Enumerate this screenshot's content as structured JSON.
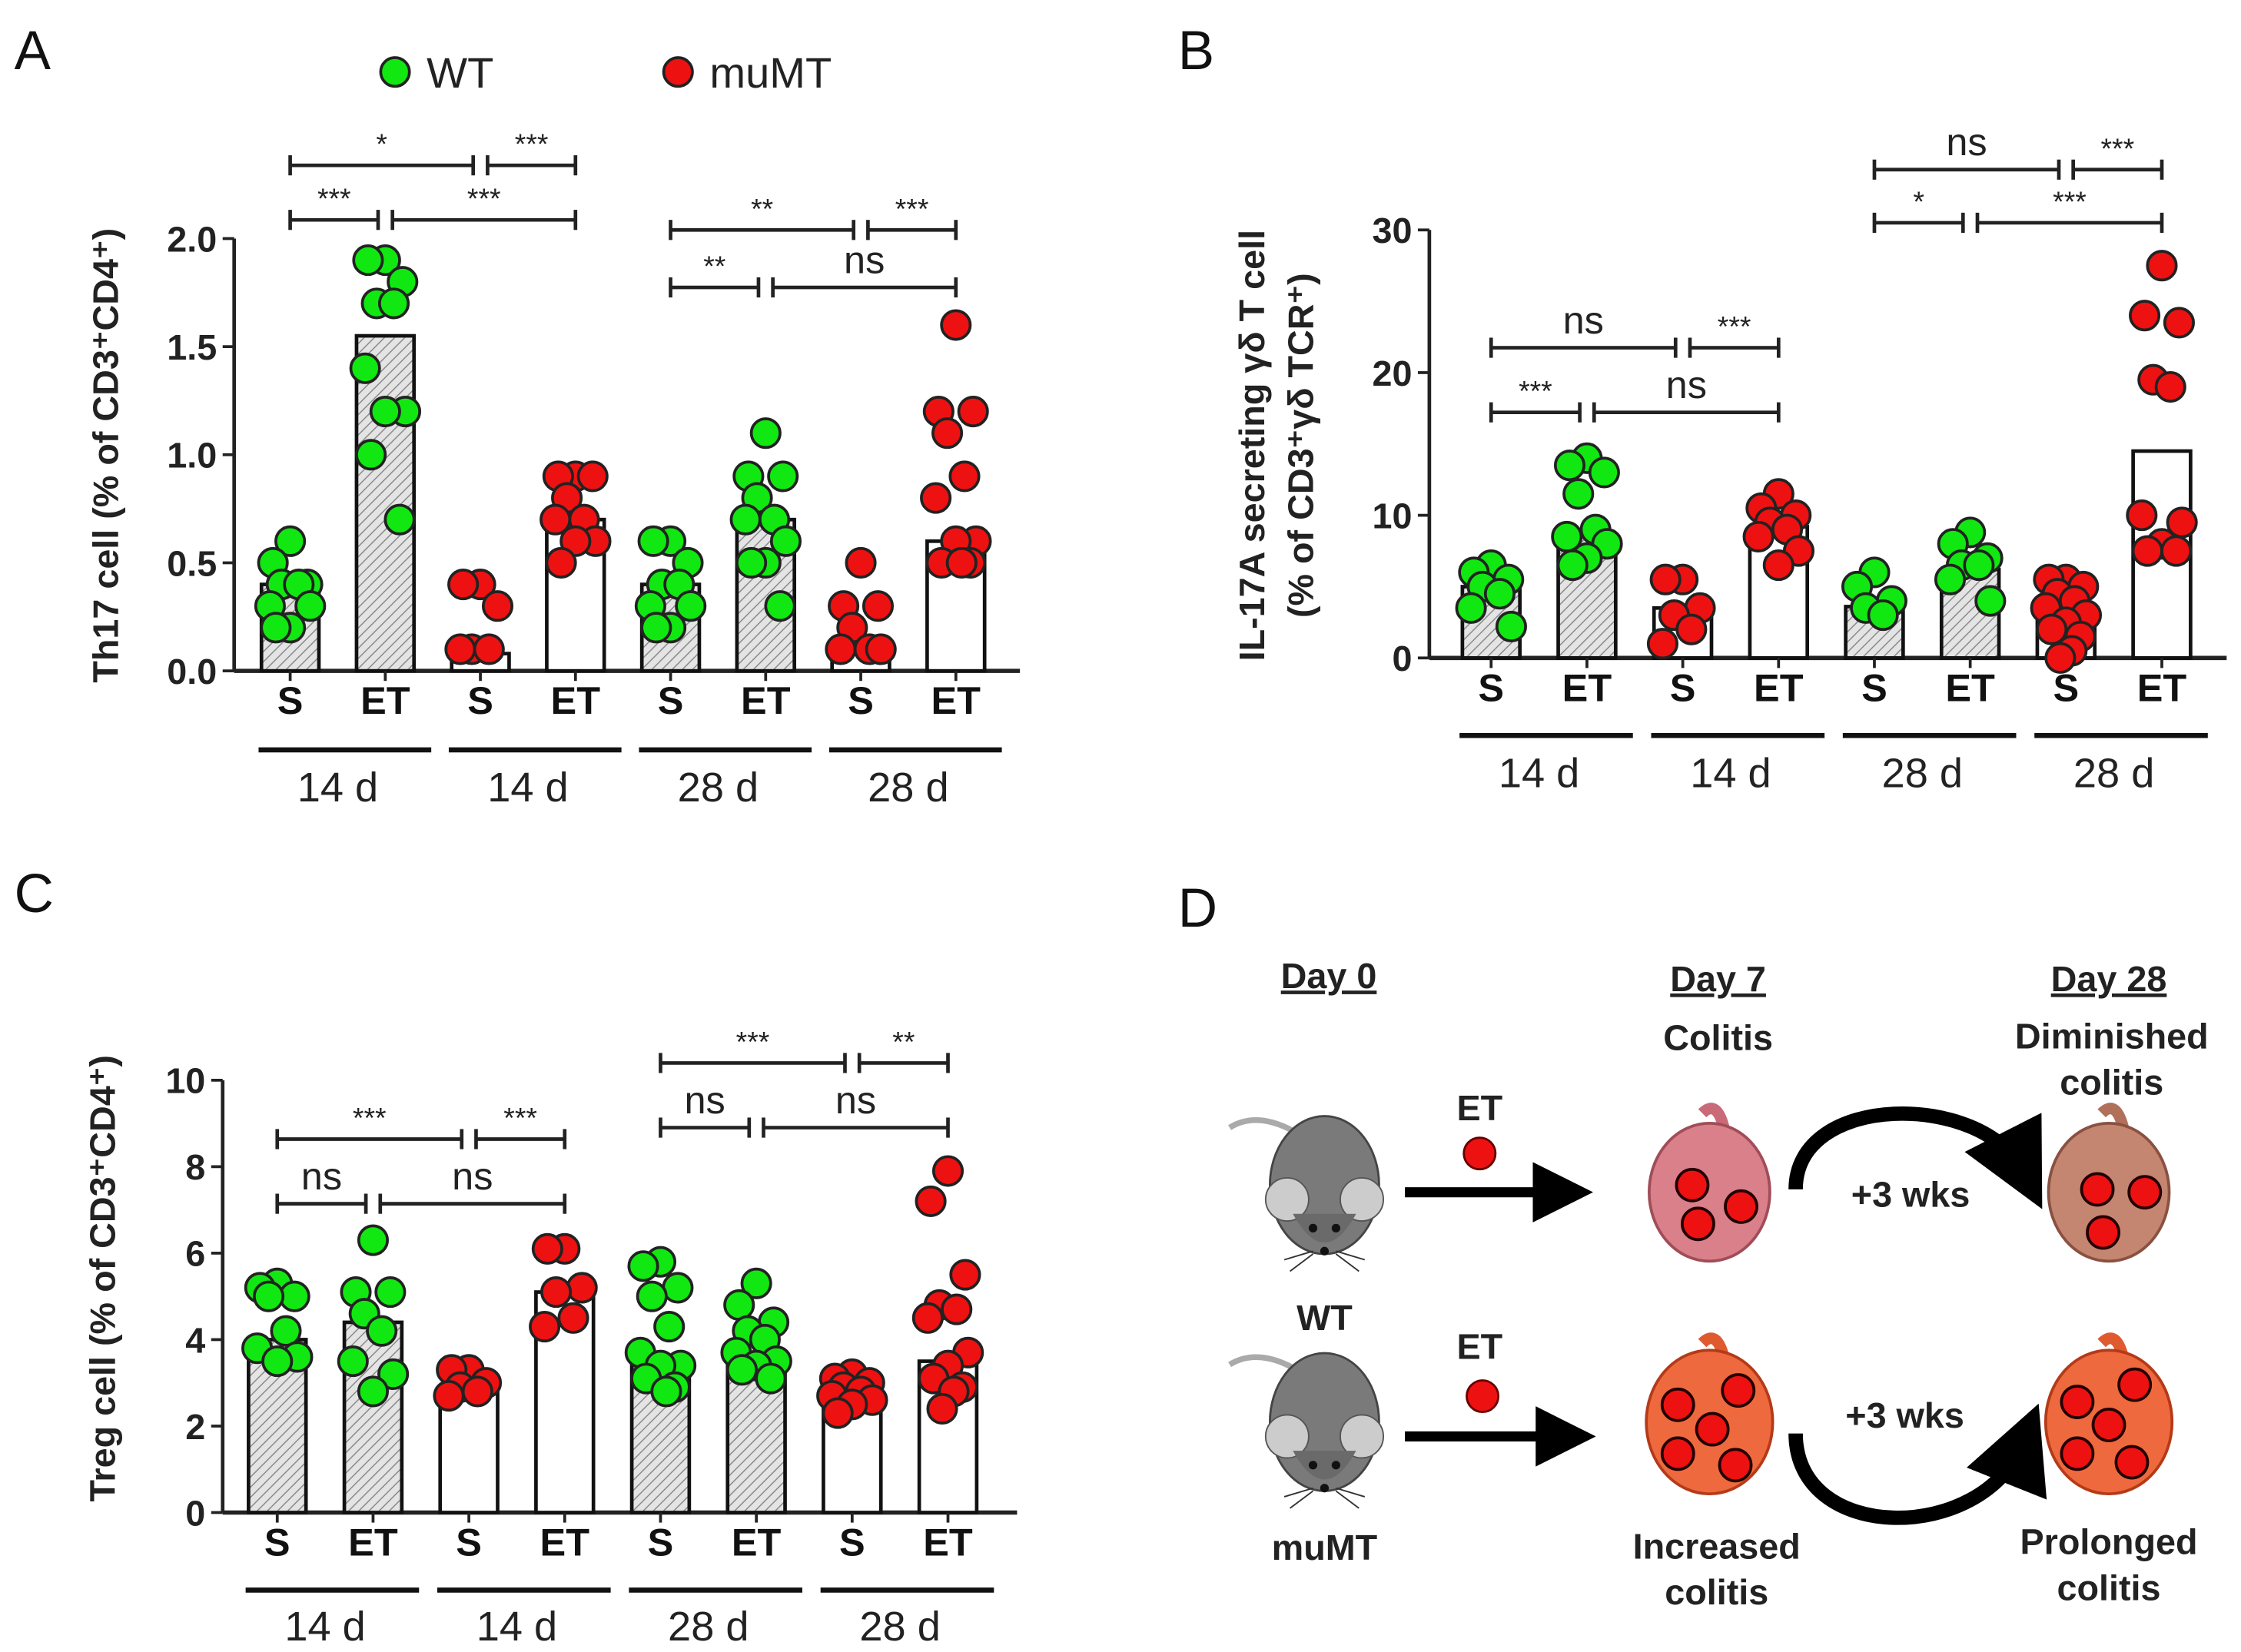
{
  "legend": {
    "wt": "WT",
    "mumt": "muMT"
  },
  "colors": {
    "wt": "#11e811",
    "mumt": "#ee1111",
    "hatch": "#999999",
    "outline": "#222222"
  },
  "chart_data": [
    {
      "panel": "A",
      "type": "bar+scatter",
      "ylabel": "Th17 cell (% of CD3⁺CD4⁺)",
      "ylim": [
        0,
        2.0
      ],
      "yticks": [
        "0.0",
        "0.5",
        "1.0",
        "1.5",
        "2.0"
      ],
      "ytick_values": [
        0,
        0.5,
        1.0,
        1.5,
        2.0
      ],
      "categories": [
        "S",
        "ET",
        "S",
        "ET",
        "S",
        "ET",
        "S",
        "ET"
      ],
      "groups": [
        "14 d",
        "14 d",
        "28 d",
        "28 d"
      ],
      "genotype": [
        "WT",
        "WT",
        "muMT",
        "muMT",
        "WT",
        "WT",
        "muMT",
        "muMT"
      ],
      "means": [
        0.4,
        1.55,
        0.08,
        0.7,
        0.4,
        0.7,
        0.08,
        0.6
      ],
      "points": [
        [
          0.6,
          0.5,
          0.4,
          0.4,
          0.4,
          0.3,
          0.3,
          0.2,
          0.2
        ],
        [
          1.9,
          1.9,
          1.8,
          1.7,
          1.7,
          1.4,
          1.2,
          1.2,
          1.0,
          0.7
        ],
        [
          0.4,
          0.4,
          0.3,
          0.1,
          0.1,
          0.1
        ],
        [
          0.9,
          0.9,
          0.9,
          0.8,
          0.7,
          0.7,
          0.6,
          0.6,
          0.5
        ],
        [
          0.6,
          0.6,
          0.5,
          0.4,
          0.4,
          0.3,
          0.3,
          0.2,
          0.2
        ],
        [
          1.1,
          0.9,
          0.9,
          0.8,
          0.7,
          0.7,
          0.6,
          0.5,
          0.5,
          0.3
        ],
        [
          0.5,
          0.3,
          0.3,
          0.2,
          0.1,
          0.1,
          0.1
        ],
        [
          1.6,
          1.2,
          1.2,
          1.1,
          0.9,
          0.8,
          0.6,
          0.6,
          0.5,
          0.5,
          0.5
        ]
      ],
      "significance": [
        {
          "from": 0,
          "to": 1,
          "label": "***",
          "level": 1
        },
        {
          "from": 1,
          "to": 3,
          "label": "***",
          "level": 1
        },
        {
          "from": 0,
          "to": 2,
          "label": "*",
          "level": 2
        },
        {
          "from": 2,
          "to": 3,
          "label": "***",
          "level": 2
        },
        {
          "from": 4,
          "to": 5,
          "label": "**",
          "level": 1
        },
        {
          "from": 5,
          "to": 7,
          "label": "ns",
          "level": 1
        },
        {
          "from": 4,
          "to": 6,
          "label": "**",
          "level": 2
        },
        {
          "from": 6,
          "to": 7,
          "label": "***",
          "level": 2
        }
      ]
    },
    {
      "panel": "B",
      "type": "bar+scatter",
      "ylabel": [
        "IL-17A secreting γδ T cell",
        "(% of CD3⁺γδ TCR⁺)"
      ],
      "ylim": [
        0,
        30
      ],
      "yticks": [
        "0",
        "10",
        "20",
        "30"
      ],
      "ytick_values": [
        0,
        10,
        20,
        30
      ],
      "categories": [
        "S",
        "ET",
        "S",
        "ET",
        "S",
        "ET",
        "S",
        "ET"
      ],
      "groups": [
        "14 d",
        "14 d",
        "28 d",
        "28 d"
      ],
      "genotype": [
        "WT",
        "WT",
        "muMT",
        "muMT",
        "WT",
        "WT",
        "muMT",
        "muMT"
      ],
      "means": [
        5.0,
        8.5,
        3.5,
        9.2,
        3.6,
        6.2,
        3.0,
        14.5
      ],
      "points": [
        [
          6.5,
          6.0,
          5.5,
          5.0,
          4.5,
          3.5,
          2.2
        ],
        [
          14.0,
          13.5,
          13.0,
          11.5,
          9.0,
          8.5,
          8.0,
          7.0,
          6.5
        ],
        [
          5.5,
          5.5,
          3.5,
          3.0,
          2.0,
          1.0
        ],
        [
          11.5,
          10.5,
          10.0,
          9.5,
          9.0,
          8.5,
          7.5,
          6.5
        ],
        [
          6.0,
          5.0,
          4.0,
          3.5,
          3.0
        ],
        [
          8.8,
          8.0,
          7.0,
          6.5,
          6.5,
          5.5,
          4.0
        ],
        [
          5.5,
          5.5,
          5.0,
          4.5,
          4.0,
          3.5,
          3.0,
          2.5,
          2.0,
          1.5,
          0.5,
          0.0
        ],
        [
          27.5,
          24.0,
          23.5,
          19.5,
          19.0,
          10.0,
          9.5,
          8.0,
          7.5,
          7.5
        ]
      ],
      "significance": [
        {
          "from": 0,
          "to": 1,
          "label": "***",
          "level": 1
        },
        {
          "from": 1,
          "to": 3,
          "label": "ns",
          "level": 1
        },
        {
          "from": 0,
          "to": 2,
          "label": "ns",
          "level": 2
        },
        {
          "from": 2,
          "to": 3,
          "label": "***",
          "level": 2
        },
        {
          "from": 4,
          "to": 5,
          "label": "*",
          "level": 1
        },
        {
          "from": 5,
          "to": 7,
          "label": "***",
          "level": 1
        },
        {
          "from": 4,
          "to": 6,
          "label": "ns",
          "level": 2
        },
        {
          "from": 6,
          "to": 7,
          "label": "***",
          "level": 2
        }
      ]
    },
    {
      "panel": "C",
      "type": "bar+scatter",
      "ylabel": "Treg cell (% of CD3⁺CD4⁺)",
      "ylim": [
        0,
        10
      ],
      "yticks": [
        "0",
        "2",
        "4",
        "6",
        "8",
        "10"
      ],
      "ytick_values": [
        0,
        2,
        4,
        6,
        8,
        10
      ],
      "categories": [
        "S",
        "ET",
        "S",
        "ET",
        "S",
        "ET",
        "S",
        "ET"
      ],
      "groups": [
        "14 d",
        "14 d",
        "28 d",
        "28 d"
      ],
      "genotype": [
        "WT",
        "WT",
        "muMT",
        "muMT",
        "WT",
        "WT",
        "muMT",
        "muMT"
      ],
      "means": [
        4.0,
        4.4,
        2.9,
        5.1,
        3.6,
        3.7,
        2.9,
        3.5
      ],
      "points": [
        [
          5.3,
          5.2,
          5.0,
          5.0,
          4.2,
          3.8,
          3.6,
          3.5
        ],
        [
          6.3,
          5.1,
          5.1,
          4.6,
          4.2,
          3.5,
          3.2,
          2.8
        ],
        [
          3.3,
          3.3,
          3.0,
          2.9,
          2.8,
          2.7
        ],
        [
          6.1,
          6.1,
          5.2,
          5.1,
          4.5,
          4.3
        ],
        [
          5.8,
          5.7,
          5.2,
          5.0,
          4.3,
          3.7,
          3.4,
          3.4,
          3.1,
          2.9,
          2.8
        ],
        [
          5.3,
          4.8,
          4.4,
          4.2,
          4.0,
          3.7,
          3.5,
          3.4,
          3.3,
          3.1
        ],
        [
          3.2,
          3.1,
          3.0,
          2.9,
          2.8,
          2.7,
          2.6,
          2.5,
          2.3
        ],
        [
          7.9,
          7.2,
          5.5,
          4.8,
          4.7,
          4.5,
          3.7,
          3.4,
          3.1,
          2.9,
          2.8,
          2.4
        ]
      ],
      "significance": [
        {
          "from": 0,
          "to": 1,
          "label": "ns",
          "level": 1
        },
        {
          "from": 1,
          "to": 3,
          "label": "ns",
          "level": 1
        },
        {
          "from": 0,
          "to": 2,
          "label": "***",
          "level": 2
        },
        {
          "from": 2,
          "to": 3,
          "label": "***",
          "level": 2
        },
        {
          "from": 4,
          "to": 5,
          "label": "ns",
          "level": 1
        },
        {
          "from": 5,
          "to": 7,
          "label": "ns",
          "level": 1
        },
        {
          "from": 4,
          "to": 6,
          "label": "***",
          "level": 2
        },
        {
          "from": 6,
          "to": 7,
          "label": "**",
          "level": 2
        }
      ]
    }
  ],
  "panels": {
    "a": "A",
    "b": "B",
    "c": "C",
    "d": "D"
  },
  "diagram": {
    "day0": "Day 0",
    "day7": "Day 7",
    "day28": "Day 28",
    "colitis": "Colitis",
    "diminished_1": "Diminished",
    "diminished_2": "colitis",
    "wt": "WT",
    "mumt": "muMT",
    "et_top": "ET",
    "et_bottom": "ET",
    "wks_top": "+3 wks",
    "wks_bottom": "+3 wks",
    "increased_1": "Increased",
    "increased_2": "colitis",
    "prolonged_1": "Prolonged",
    "prolonged_2": "colitis"
  }
}
